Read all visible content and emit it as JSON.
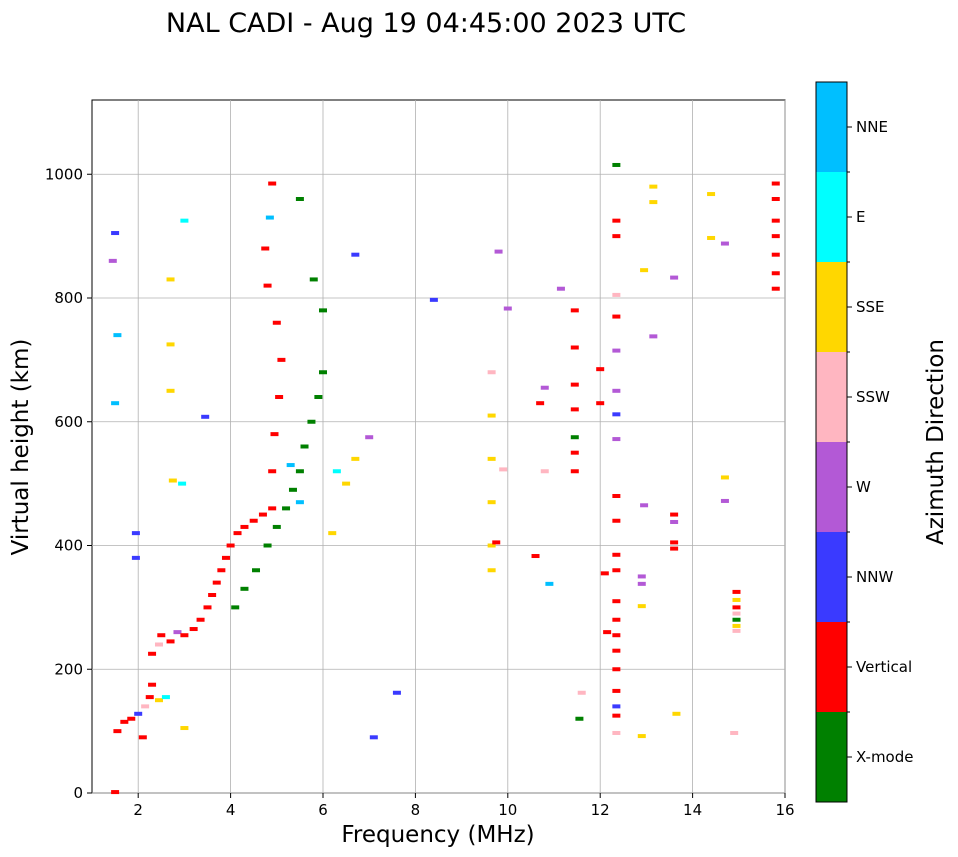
{
  "chart_data": {
    "type": "scatter",
    "title": "NAL CADI - Aug 19 04:45:00 2023 UTC",
    "xlabel": "Frequency (MHz)",
    "ylabel": "Virtual height (km)",
    "xlim": [
      1,
      16
    ],
    "ylim": [
      0,
      1120
    ],
    "xticks": [
      2,
      4,
      6,
      8,
      10,
      12,
      14,
      16
    ],
    "yticks": [
      0,
      200,
      400,
      600,
      800,
      1000
    ],
    "grid": true,
    "colorbar": {
      "label": "Azimuth Direction",
      "categories": [
        {
          "name": "X-mode",
          "color": "#008000"
        },
        {
          "name": "Vertical",
          "color": "#ff0000"
        },
        {
          "name": "NNW",
          "color": "#3a3aff"
        },
        {
          "name": "W",
          "color": "#b359d6"
        },
        {
          "name": "SSW",
          "color": "#ffb6c1"
        },
        {
          "name": "SSE",
          "color": "#ffd700"
        },
        {
          "name": "E",
          "color": "#00ffff"
        },
        {
          "name": "NNE",
          "color": "#00bfff"
        }
      ]
    },
    "echoes": [
      {
        "f": 1.5,
        "h": 1.5,
        "c": "Vertical"
      },
      {
        "f": 2.1,
        "h": 90,
        "c": "Vertical"
      },
      {
        "f": 1.55,
        "h": 100,
        "c": "Vertical"
      },
      {
        "f": 1.7,
        "h": 115,
        "c": "Vertical"
      },
      {
        "f": 1.85,
        "h": 120,
        "c": "Vertical"
      },
      {
        "f": 2.0,
        "h": 128,
        "c": "NNW"
      },
      {
        "f": 2.15,
        "h": 140,
        "c": "SSW"
      },
      {
        "f": 2.25,
        "h": 155,
        "c": "Vertical"
      },
      {
        "f": 2.3,
        "h": 175,
        "c": "Vertical"
      },
      {
        "f": 2.45,
        "h": 150,
        "c": "SSE"
      },
      {
        "f": 2.6,
        "h": 155,
        "c": "E"
      },
      {
        "f": 2.3,
        "h": 225,
        "c": "Vertical"
      },
      {
        "f": 2.45,
        "h": 240,
        "c": "SSW"
      },
      {
        "f": 2.5,
        "h": 255,
        "c": "Vertical"
      },
      {
        "f": 2.7,
        "h": 245,
        "c": "Vertical"
      },
      {
        "f": 2.85,
        "h": 260,
        "c": "W"
      },
      {
        "f": 3.0,
        "h": 255,
        "c": "Vertical"
      },
      {
        "f": 3.2,
        "h": 265,
        "c": "Vertical"
      },
      {
        "f": 3.35,
        "h": 280,
        "c": "Vertical"
      },
      {
        "f": 3.5,
        "h": 300,
        "c": "Vertical"
      },
      {
        "f": 3.6,
        "h": 320,
        "c": "Vertical"
      },
      {
        "f": 3.7,
        "h": 340,
        "c": "Vertical"
      },
      {
        "f": 3.8,
        "h": 360,
        "c": "Vertical"
      },
      {
        "f": 3.9,
        "h": 380,
        "c": "Vertical"
      },
      {
        "f": 4.0,
        "h": 400,
        "c": "Vertical"
      },
      {
        "f": 4.15,
        "h": 420,
        "c": "Vertical"
      },
      {
        "f": 4.3,
        "h": 430,
        "c": "Vertical"
      },
      {
        "f": 4.5,
        "h": 440,
        "c": "Vertical"
      },
      {
        "f": 4.7,
        "h": 450,
        "c": "Vertical"
      },
      {
        "f": 4.9,
        "h": 460,
        "c": "Vertical"
      },
      {
        "f": 4.1,
        "h": 300,
        "c": "X-mode"
      },
      {
        "f": 4.3,
        "h": 330,
        "c": "X-mode"
      },
      {
        "f": 4.55,
        "h": 360,
        "c": "X-mode"
      },
      {
        "f": 4.8,
        "h": 400,
        "c": "X-mode"
      },
      {
        "f": 5.0,
        "h": 430,
        "c": "X-mode"
      },
      {
        "f": 5.2,
        "h": 460,
        "c": "X-mode"
      },
      {
        "f": 5.35,
        "h": 490,
        "c": "X-mode"
      },
      {
        "f": 5.5,
        "h": 520,
        "c": "X-mode"
      },
      {
        "f": 5.6,
        "h": 560,
        "c": "X-mode"
      },
      {
        "f": 5.75,
        "h": 600,
        "c": "X-mode"
      },
      {
        "f": 5.9,
        "h": 640,
        "c": "X-mode"
      },
      {
        "f": 6.0,
        "h": 680,
        "c": "X-mode"
      },
      {
        "f": 5.3,
        "h": 530,
        "c": "NNE"
      },
      {
        "f": 5.5,
        "h": 470,
        "c": "NNE"
      },
      {
        "f": 6.3,
        "h": 520,
        "c": "E"
      },
      {
        "f": 6.5,
        "h": 500,
        "c": "SSE"
      },
      {
        "f": 6.7,
        "h": 540,
        "c": "SSE"
      },
      {
        "f": 6.2,
        "h": 420,
        "c": "SSE"
      },
      {
        "f": 4.9,
        "h": 520,
        "c": "Vertical"
      },
      {
        "f": 4.95,
        "h": 580,
        "c": "Vertical"
      },
      {
        "f": 5.05,
        "h": 640,
        "c": "Vertical"
      },
      {
        "f": 5.1,
        "h": 700,
        "c": "Vertical"
      },
      {
        "f": 5.0,
        "h": 760,
        "c": "Vertical"
      },
      {
        "f": 4.8,
        "h": 820,
        "c": "Vertical"
      },
      {
        "f": 4.75,
        "h": 880,
        "c": "Vertical"
      },
      {
        "f": 4.85,
        "h": 930,
        "c": "NNE"
      },
      {
        "f": 4.9,
        "h": 985,
        "c": "Vertical"
      },
      {
        "f": 5.5,
        "h": 960,
        "c": "X-mode"
      },
      {
        "f": 5.8,
        "h": 830,
        "c": "X-mode"
      },
      {
        "f": 6.0,
        "h": 780,
        "c": "X-mode"
      },
      {
        "f": 1.5,
        "h": 630,
        "c": "NNE"
      },
      {
        "f": 1.55,
        "h": 740,
        "c": "NNE"
      },
      {
        "f": 1.45,
        "h": 860,
        "c": "W"
      },
      {
        "f": 1.5,
        "h": 905,
        "c": "NNW"
      },
      {
        "f": 1.95,
        "h": 420,
        "c": "NNW"
      },
      {
        "f": 1.95,
        "h": 380,
        "c": "NNW"
      },
      {
        "f": 2.7,
        "h": 830,
        "c": "SSE"
      },
      {
        "f": 2.7,
        "h": 725,
        "c": "SSE"
      },
      {
        "f": 2.7,
        "h": 650,
        "c": "SSE"
      },
      {
        "f": 2.75,
        "h": 505,
        "c": "SSE"
      },
      {
        "f": 3.0,
        "h": 925,
        "c": "E"
      },
      {
        "f": 3.0,
        "h": 105,
        "c": "SSE"
      },
      {
        "f": 2.95,
        "h": 500,
        "c": "E"
      },
      {
        "f": 3.45,
        "h": 608,
        "c": "NNW"
      },
      {
        "f": 6.7,
        "h": 870,
        "c": "NNW"
      },
      {
        "f": 7.0,
        "h": 575,
        "c": "W"
      },
      {
        "f": 7.6,
        "h": 162,
        "c": "NNW"
      },
      {
        "f": 7.1,
        "h": 90,
        "c": "NNW"
      },
      {
        "f": 8.4,
        "h": 797,
        "c": "NNW"
      },
      {
        "f": 9.65,
        "h": 680,
        "c": "SSW"
      },
      {
        "f": 9.65,
        "h": 610,
        "c": "SSE"
      },
      {
        "f": 9.65,
        "h": 540,
        "c": "SSE"
      },
      {
        "f": 9.65,
        "h": 470,
        "c": "SSE"
      },
      {
        "f": 9.65,
        "h": 400,
        "c": "SSE"
      },
      {
        "f": 9.65,
        "h": 360,
        "c": "SSE"
      },
      {
        "f": 9.75,
        "h": 405,
        "c": "Vertical"
      },
      {
        "f": 9.8,
        "h": 875,
        "c": "W"
      },
      {
        "f": 9.9,
        "h": 523,
        "c": "SSW"
      },
      {
        "f": 10.0,
        "h": 783,
        "c": "W"
      },
      {
        "f": 10.6,
        "h": 383,
        "c": "Vertical"
      },
      {
        "f": 10.7,
        "h": 630,
        "c": "Vertical"
      },
      {
        "f": 10.8,
        "h": 655,
        "c": "W"
      },
      {
        "f": 10.8,
        "h": 520,
        "c": "SSW"
      },
      {
        "f": 10.9,
        "h": 338,
        "c": "NNE"
      },
      {
        "f": 11.15,
        "h": 815,
        "c": "W"
      },
      {
        "f": 11.45,
        "h": 780,
        "c": "Vertical"
      },
      {
        "f": 11.45,
        "h": 720,
        "c": "Vertical"
      },
      {
        "f": 11.45,
        "h": 660,
        "c": "Vertical"
      },
      {
        "f": 11.45,
        "h": 620,
        "c": "Vertical"
      },
      {
        "f": 11.45,
        "h": 575,
        "c": "X-mode"
      },
      {
        "f": 11.45,
        "h": 550,
        "c": "Vertical"
      },
      {
        "f": 11.45,
        "h": 520,
        "c": "Vertical"
      },
      {
        "f": 11.55,
        "h": 120,
        "c": "X-mode"
      },
      {
        "f": 11.6,
        "h": 162,
        "c": "SSW"
      },
      {
        "f": 12.0,
        "h": 630,
        "c": "Vertical"
      },
      {
        "f": 12.0,
        "h": 685,
        "c": "Vertical"
      },
      {
        "f": 12.1,
        "h": 355,
        "c": "Vertical"
      },
      {
        "f": 12.15,
        "h": 260,
        "c": "Vertical"
      },
      {
        "f": 12.35,
        "h": 1015,
        "c": "X-mode"
      },
      {
        "f": 12.35,
        "h": 925,
        "c": "Vertical"
      },
      {
        "f": 12.35,
        "h": 900,
        "c": "Vertical"
      },
      {
        "f": 12.35,
        "h": 805,
        "c": "SSW"
      },
      {
        "f": 12.35,
        "h": 770,
        "c": "Vertical"
      },
      {
        "f": 12.35,
        "h": 715,
        "c": "W"
      },
      {
        "f": 12.35,
        "h": 650,
        "c": "W"
      },
      {
        "f": 12.35,
        "h": 612,
        "c": "NNW"
      },
      {
        "f": 12.35,
        "h": 572,
        "c": "W"
      },
      {
        "f": 12.35,
        "h": 480,
        "c": "Vertical"
      },
      {
        "f": 12.35,
        "h": 440,
        "c": "Vertical"
      },
      {
        "f": 12.35,
        "h": 385,
        "c": "Vertical"
      },
      {
        "f": 12.35,
        "h": 360,
        "c": "Vertical"
      },
      {
        "f": 12.35,
        "h": 310,
        "c": "Vertical"
      },
      {
        "f": 12.35,
        "h": 280,
        "c": "Vertical"
      },
      {
        "f": 12.35,
        "h": 255,
        "c": "Vertical"
      },
      {
        "f": 12.35,
        "h": 230,
        "c": "Vertical"
      },
      {
        "f": 12.35,
        "h": 200,
        "c": "Vertical"
      },
      {
        "f": 12.35,
        "h": 165,
        "c": "Vertical"
      },
      {
        "f": 12.35,
        "h": 140,
        "c": "NNW"
      },
      {
        "f": 12.35,
        "h": 125,
        "c": "Vertical"
      },
      {
        "f": 12.35,
        "h": 97,
        "c": "SSW"
      },
      {
        "f": 12.9,
        "h": 350,
        "c": "W"
      },
      {
        "f": 12.9,
        "h": 338,
        "c": "W"
      },
      {
        "f": 12.9,
        "h": 302,
        "c": "SSE"
      },
      {
        "f": 12.9,
        "h": 92,
        "c": "SSE"
      },
      {
        "f": 12.95,
        "h": 845,
        "c": "SSE"
      },
      {
        "f": 12.95,
        "h": 465,
        "c": "W"
      },
      {
        "f": 13.15,
        "h": 980,
        "c": "SSE"
      },
      {
        "f": 13.15,
        "h": 955,
        "c": "SSE"
      },
      {
        "f": 13.15,
        "h": 738,
        "c": "W"
      },
      {
        "f": 13.6,
        "h": 833,
        "c": "W"
      },
      {
        "f": 13.6,
        "h": 450,
        "c": "Vertical"
      },
      {
        "f": 13.6,
        "h": 438,
        "c": "W"
      },
      {
        "f": 13.6,
        "h": 405,
        "c": "Vertical"
      },
      {
        "f": 13.6,
        "h": 395,
        "c": "Vertical"
      },
      {
        "f": 13.65,
        "h": 128,
        "c": "SSE"
      },
      {
        "f": 14.4,
        "h": 968,
        "c": "SSE"
      },
      {
        "f": 14.4,
        "h": 897,
        "c": "SSE"
      },
      {
        "f": 14.7,
        "h": 888,
        "c": "W"
      },
      {
        "f": 14.7,
        "h": 510,
        "c": "SSE"
      },
      {
        "f": 14.7,
        "h": 472,
        "c": "W"
      },
      {
        "f": 14.9,
        "h": 97,
        "c": "SSW"
      },
      {
        "f": 14.95,
        "h": 325,
        "c": "Vertical"
      },
      {
        "f": 14.95,
        "h": 312,
        "c": "SSE"
      },
      {
        "f": 14.95,
        "h": 300,
        "c": "Vertical"
      },
      {
        "f": 14.95,
        "h": 290,
        "c": "SSW"
      },
      {
        "f": 14.95,
        "h": 280,
        "c": "X-mode"
      },
      {
        "f": 14.95,
        "h": 270,
        "c": "SSE"
      },
      {
        "f": 14.95,
        "h": 262,
        "c": "SSW"
      },
      {
        "f": 15.8,
        "h": 985,
        "c": "Vertical"
      },
      {
        "f": 15.8,
        "h": 960,
        "c": "Vertical"
      },
      {
        "f": 15.8,
        "h": 925,
        "c": "Vertical"
      },
      {
        "f": 15.8,
        "h": 900,
        "c": "Vertical"
      },
      {
        "f": 15.8,
        "h": 870,
        "c": "Vertical"
      },
      {
        "f": 15.8,
        "h": 840,
        "c": "Vertical"
      },
      {
        "f": 15.8,
        "h": 815,
        "c": "Vertical"
      }
    ]
  }
}
